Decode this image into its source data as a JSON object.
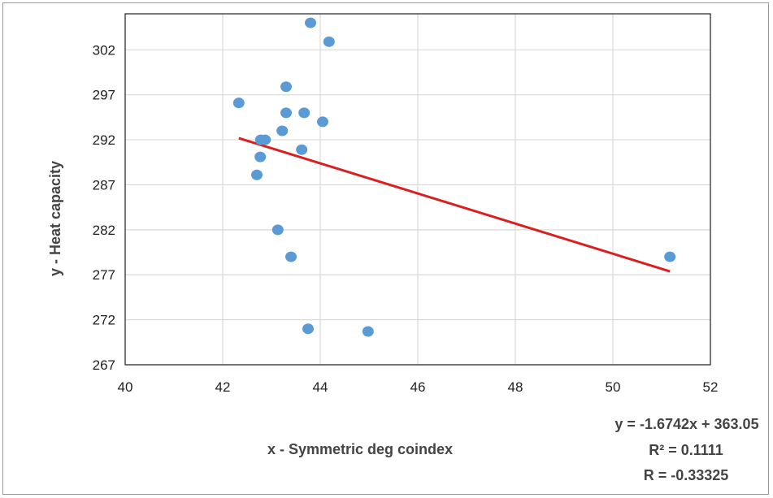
{
  "chart_data": {
    "type": "scatter",
    "title": "",
    "xlabel": "x - Symmetric deg coindex",
    "ylabel": "y - Heat capacity",
    "xlim": [
      40,
      52
    ],
    "ylim": [
      267,
      306
    ],
    "xticks": [
      40,
      42,
      44,
      46,
      48,
      50,
      52
    ],
    "yticks": [
      267,
      272,
      277,
      282,
      287,
      292,
      297,
      302
    ],
    "grid": true,
    "legend": "none",
    "series": [
      {
        "color": "#5b9bd5",
        "points": [
          {
            "x": 43.8,
            "y": 305.0
          },
          {
            "x": 44.18,
            "y": 302.9
          },
          {
            "x": 43.3,
            "y": 297.9
          },
          {
            "x": 42.33,
            "y": 296.1
          },
          {
            "x": 43.3,
            "y": 295.0
          },
          {
            "x": 43.67,
            "y": 295.0
          },
          {
            "x": 44.05,
            "y": 294.0
          },
          {
            "x": 43.22,
            "y": 293.0
          },
          {
            "x": 42.78,
            "y": 292.0
          },
          {
            "x": 42.87,
            "y": 292.0
          },
          {
            "x": 43.62,
            "y": 290.9
          },
          {
            "x": 42.77,
            "y": 290.1
          },
          {
            "x": 42.7,
            "y": 288.1
          },
          {
            "x": 43.13,
            "y": 282.0
          },
          {
            "x": 43.4,
            "y": 279.0
          },
          {
            "x": 51.17,
            "y": 279.0
          },
          {
            "x": 43.75,
            "y": 271.0
          },
          {
            "x": 44.98,
            "y": 270.7
          }
        ]
      }
    ],
    "trendline": {
      "color": "#d92020",
      "slope": -1.6742,
      "intercept": 363.05,
      "x_range": [
        42.33,
        51.17
      ]
    },
    "annotations": {
      "equation": "y = -1.6742x + 363.05",
      "r_squared": "R² = 0.1111",
      "r_value": "R = -0.33325"
    }
  }
}
